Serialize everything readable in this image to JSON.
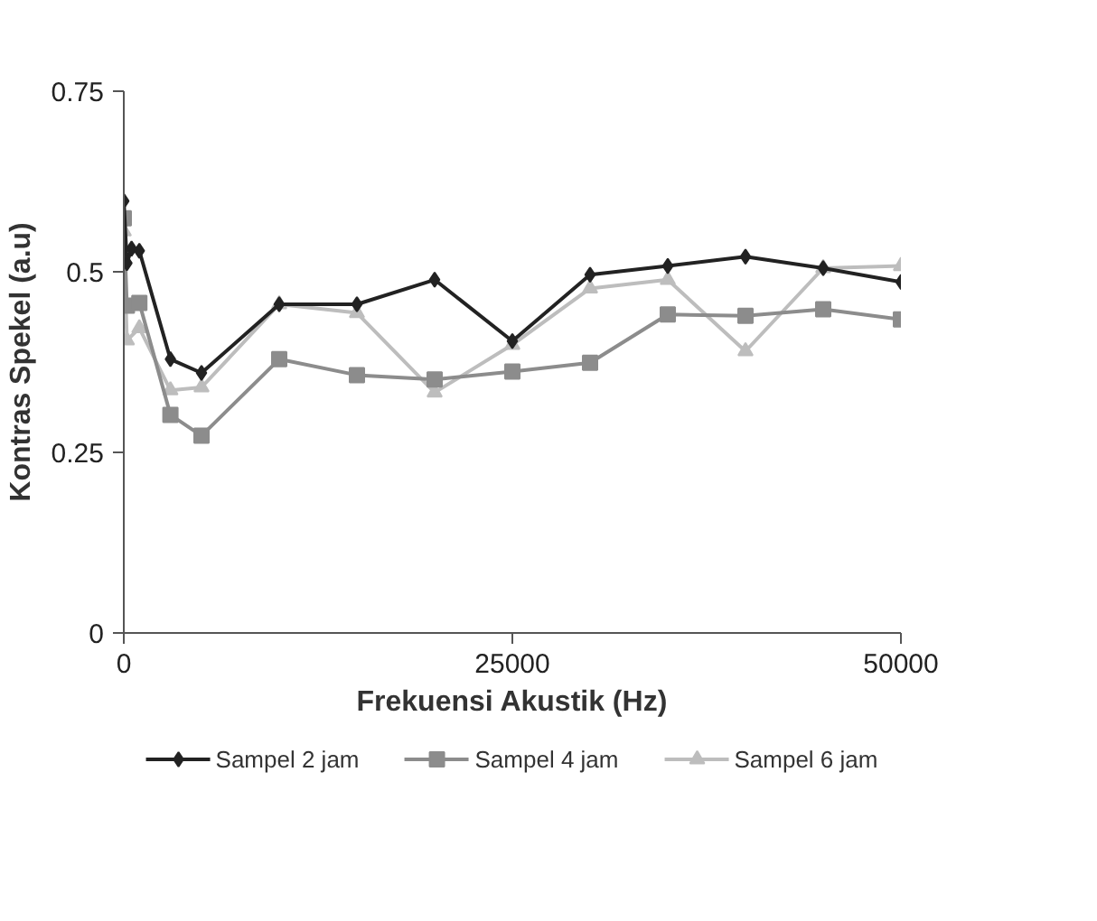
{
  "chart_data": {
    "type": "line",
    "xlabel": "Frekuensi Akustik (Hz)",
    "ylabel": "Kontras Spekel (a.u)",
    "xlim": [
      0,
      50000
    ],
    "xticks": [
      0,
      25000,
      50000
    ],
    "ylim": [
      0,
      0.75
    ],
    "yticks": [
      0,
      0.25,
      0.5,
      0.75
    ],
    "grid": false,
    "legend": "bottom",
    "line_style": "solid",
    "series": [
      {
        "name": "Sampel 2 jam",
        "color": "#222222",
        "marker": "diamond",
        "x": [
          0,
          200,
          500,
          1000,
          3000,
          5000,
          10000,
          15000,
          20000,
          25000,
          30000,
          35000,
          40000,
          45000,
          50000
        ],
        "values": [
          0.598,
          0.512,
          0.532,
          0.529,
          0.379,
          0.36,
          0.455,
          0.455,
          0.489,
          0.404,
          0.496,
          0.508,
          0.521,
          0.505,
          0.486
        ]
      },
      {
        "name": "Sampel 4 jam",
        "color": "#8c8c8c",
        "marker": "square",
        "x": [
          0,
          200,
          1000,
          3000,
          5000,
          10000,
          15000,
          20000,
          25000,
          30000,
          35000,
          40000,
          45000,
          50000
        ],
        "values": [
          0.574,
          0.453,
          0.457,
          0.302,
          0.273,
          0.379,
          0.357,
          0.351,
          0.362,
          0.374,
          0.441,
          0.439,
          0.448,
          0.434
        ]
      },
      {
        "name": "Sampel 6 jam",
        "color": "#bdbdbd",
        "marker": "triangle",
        "x": [
          0,
          200,
          1000,
          3000,
          5000,
          10000,
          15000,
          20000,
          25000,
          30000,
          35000,
          40000,
          45000,
          50000
        ],
        "values": [
          0.556,
          0.405,
          0.422,
          0.336,
          0.34,
          0.455,
          0.443,
          0.333,
          0.399,
          0.477,
          0.489,
          0.39,
          0.505,
          0.508
        ]
      }
    ]
  }
}
